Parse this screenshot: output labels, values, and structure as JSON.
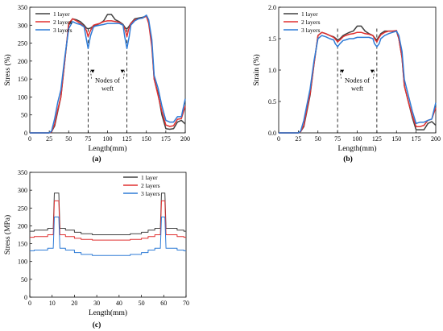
{
  "chart_data": [
    {
      "type": "line",
      "panel_label": "(a)",
      "xlabel": "Length(mm)",
      "ylabel": "Stress (%)",
      "xlim": [
        0,
        200
      ],
      "ylim": [
        0,
        350
      ],
      "xticks": [
        0,
        25,
        50,
        75,
        100,
        125,
        150,
        175,
        200
      ],
      "yticks": [
        0,
        50,
        100,
        150,
        200,
        250,
        300,
        350
      ],
      "legend_position": "top-left",
      "annotation": {
        "text": "Nodes of\nweft",
        "at_x": [
          75,
          125
        ]
      },
      "series": [
        {
          "name": "1 layer",
          "color": "#404040",
          "x": [
            0,
            25,
            28,
            32,
            36,
            40,
            45,
            50,
            55,
            60,
            65,
            70,
            73,
            75,
            78,
            82,
            85,
            90,
            95,
            100,
            105,
            110,
            115,
            120,
            123,
            125,
            127,
            130,
            135,
            140,
            145,
            150,
            153,
            157,
            160,
            165,
            170,
            175,
            180,
            185,
            190,
            195,
            200
          ],
          "y": [
            0,
            0,
            3,
            20,
            60,
            100,
            200,
            300,
            318,
            315,
            310,
            300,
            292,
            290,
            292,
            298,
            300,
            305,
            312,
            330,
            330,
            315,
            310,
            302,
            292,
            290,
            295,
            305,
            318,
            320,
            322,
            325,
            310,
            250,
            150,
            110,
            50,
            12,
            10,
            12,
            30,
            35,
            25
          ]
        },
        {
          "name": "2 layers",
          "color": "#e03030",
          "x": [
            0,
            25,
            28,
            32,
            36,
            40,
            45,
            50,
            55,
            60,
            65,
            70,
            73,
            75,
            78,
            82,
            85,
            90,
            95,
            100,
            105,
            110,
            115,
            120,
            123,
            125,
            127,
            130,
            135,
            140,
            145,
            150,
            153,
            157,
            160,
            165,
            170,
            175,
            180,
            185,
            190,
            195,
            200
          ],
          "y": [
            0,
            0,
            3,
            25,
            65,
            100,
            200,
            305,
            318,
            312,
            305,
            296,
            285,
            268,
            285,
            300,
            302,
            305,
            310,
            312,
            312,
            310,
            308,
            300,
            285,
            268,
            288,
            305,
            315,
            318,
            320,
            325,
            305,
            240,
            150,
            105,
            60,
            22,
            18,
            20,
            38,
            40,
            75
          ]
        },
        {
          "name": "3 layers",
          "color": "#2e7bd6",
          "x": [
            0,
            25,
            28,
            32,
            36,
            40,
            45,
            50,
            55,
            60,
            65,
            70,
            72,
            75,
            78,
            82,
            85,
            90,
            95,
            100,
            105,
            110,
            115,
            120,
            122,
            125,
            128,
            130,
            135,
            140,
            145,
            150,
            153,
            157,
            160,
            165,
            170,
            175,
            180,
            185,
            190,
            195,
            200
          ],
          "y": [
            0,
            0,
            5,
            40,
            85,
            120,
            210,
            290,
            310,
            305,
            302,
            295,
            270,
            235,
            270,
            295,
            298,
            300,
            302,
            305,
            305,
            305,
            305,
            300,
            270,
            235,
            270,
            300,
            312,
            318,
            320,
            328,
            315,
            260,
            160,
            125,
            75,
            35,
            30,
            30,
            45,
            45,
            95
          ]
        }
      ]
    },
    {
      "type": "line",
      "panel_label": "(b)",
      "xlabel": "Length(mm)",
      "ylabel": "Strain (%)",
      "xlim": [
        0,
        200
      ],
      "ylim": [
        0,
        2.0
      ],
      "xticks": [
        0,
        25,
        50,
        75,
        100,
        125,
        150,
        175,
        200
      ],
      "yticks": [
        0.0,
        0.5,
        1.0,
        1.5,
        2.0
      ],
      "ytick_labels": [
        "0.0",
        "0.5",
        "1.0",
        "1.5",
        "2.0"
      ],
      "legend_position": "top-left",
      "annotation": {
        "text": "Nodes of\nweft",
        "at_x": [
          75,
          125
        ]
      },
      "series": [
        {
          "name": "1 layer",
          "color": "#404040",
          "x": [
            0,
            25,
            28,
            32,
            36,
            40,
            45,
            50,
            55,
            60,
            65,
            70,
            73,
            75,
            78,
            82,
            85,
            90,
            95,
            100,
            105,
            110,
            115,
            120,
            123,
            125,
            127,
            130,
            135,
            140,
            145,
            150,
            153,
            157,
            160,
            165,
            170,
            175,
            180,
            185,
            190,
            195,
            200
          ],
          "y": [
            0,
            0,
            0.02,
            0.1,
            0.35,
            0.6,
            1.1,
            1.55,
            1.6,
            1.58,
            1.55,
            1.53,
            1.5,
            1.48,
            1.5,
            1.55,
            1.57,
            1.6,
            1.62,
            1.7,
            1.7,
            1.62,
            1.58,
            1.55,
            1.5,
            1.48,
            1.52,
            1.58,
            1.62,
            1.62,
            1.62,
            1.62,
            1.5,
            1.2,
            0.75,
            0.5,
            0.25,
            0.05,
            0.05,
            0.05,
            0.15,
            0.18,
            0.12
          ]
        },
        {
          "name": "2 layers",
          "color": "#e03030",
          "x": [
            0,
            25,
            28,
            32,
            36,
            40,
            45,
            50,
            55,
            60,
            65,
            70,
            73,
            75,
            78,
            82,
            85,
            90,
            95,
            100,
            105,
            110,
            115,
            120,
            123,
            125,
            127,
            130,
            135,
            140,
            145,
            150,
            153,
            157,
            160,
            165,
            170,
            175,
            180,
            185,
            190,
            195,
            200
          ],
          "y": [
            0,
            0,
            0.02,
            0.12,
            0.38,
            0.62,
            1.1,
            1.55,
            1.6,
            1.58,
            1.55,
            1.52,
            1.48,
            1.45,
            1.48,
            1.53,
            1.55,
            1.57,
            1.58,
            1.6,
            1.6,
            1.58,
            1.57,
            1.55,
            1.48,
            1.45,
            1.5,
            1.56,
            1.6,
            1.62,
            1.62,
            1.63,
            1.5,
            1.2,
            0.75,
            0.5,
            0.28,
            0.1,
            0.1,
            0.12,
            0.2,
            0.22,
            0.4
          ]
        },
        {
          "name": "3 layers",
          "color": "#2e7bd6",
          "x": [
            0,
            25,
            28,
            32,
            36,
            40,
            45,
            50,
            55,
            60,
            65,
            70,
            72,
            75,
            78,
            82,
            85,
            90,
            95,
            100,
            105,
            110,
            115,
            120,
            122,
            125,
            128,
            130,
            135,
            140,
            145,
            150,
            153,
            157,
            160,
            165,
            170,
            175,
            180,
            185,
            190,
            195,
            200
          ],
          "y": [
            0,
            0,
            0.03,
            0.2,
            0.45,
            0.7,
            1.15,
            1.5,
            1.55,
            1.53,
            1.5,
            1.48,
            1.42,
            1.37,
            1.42,
            1.47,
            1.48,
            1.5,
            1.5,
            1.52,
            1.52,
            1.52,
            1.52,
            1.5,
            1.42,
            1.37,
            1.42,
            1.5,
            1.55,
            1.58,
            1.6,
            1.62,
            1.55,
            1.3,
            0.85,
            0.6,
            0.35,
            0.15,
            0.17,
            0.17,
            0.2,
            0.22,
            0.48
          ]
        }
      ]
    },
    {
      "type": "line",
      "panel_label": "(c)",
      "xlabel": "Length(mm)",
      "ylabel": "Stress (MPa)",
      "xlim": [
        0,
        70
      ],
      "ylim": [
        0,
        350
      ],
      "xticks": [
        0,
        10,
        20,
        30,
        40,
        50,
        60,
        70
      ],
      "yticks": [
        0,
        50,
        100,
        150,
        200,
        250,
        300,
        350
      ],
      "legend_position": "top-right",
      "series": [
        {
          "name": "1 layer",
          "color": "#404040",
          "x": [
            0,
            2,
            2,
            8,
            8,
            10.5,
            11,
            13,
            13.5,
            14,
            16,
            16,
            20,
            20,
            23,
            23,
            28,
            28,
            45,
            45,
            50,
            50,
            53,
            53,
            56,
            56,
            58.5,
            59,
            60.5,
            61,
            63,
            63.5,
            64,
            66,
            66,
            69,
            69,
            70
          ],
          "y": [
            185,
            185,
            188,
            188,
            193,
            193,
            292,
            292,
            193,
            193,
            193,
            188,
            188,
            182,
            182,
            178,
            178,
            175,
            175,
            178,
            178,
            182,
            182,
            188,
            188,
            193,
            193,
            292,
            292,
            193,
            193,
            193,
            193,
            193,
            188,
            188,
            185,
            185
          ]
        },
        {
          "name": "2 layers",
          "color": "#e03030",
          "x": [
            0,
            2,
            2,
            8,
            8,
            10.5,
            11,
            13,
            13.5,
            14,
            16,
            16,
            20,
            20,
            23,
            23,
            28,
            28,
            45,
            45,
            50,
            50,
            53,
            53,
            56,
            56,
            58.5,
            59,
            60.5,
            61,
            63,
            63.5,
            64,
            66,
            66,
            69,
            69,
            70
          ],
          "y": [
            168,
            168,
            170,
            170,
            175,
            175,
            270,
            270,
            175,
            175,
            175,
            170,
            170,
            165,
            165,
            162,
            162,
            160,
            160,
            162,
            162,
            165,
            165,
            170,
            170,
            175,
            175,
            270,
            270,
            175,
            175,
            175,
            175,
            175,
            170,
            170,
            168,
            168
          ]
        },
        {
          "name": "3 layers",
          "color": "#2e7bd6",
          "x": [
            0,
            2,
            2,
            8,
            8,
            10.5,
            11,
            13,
            13.5,
            14,
            16,
            16,
            20,
            20,
            23,
            23,
            28,
            28,
            45,
            45,
            50,
            50,
            53,
            53,
            56,
            56,
            58.5,
            59,
            60.5,
            61,
            63,
            63.5,
            64,
            66,
            66,
            69,
            69,
            70
          ],
          "y": [
            130,
            130,
            132,
            132,
            137,
            137,
            225,
            225,
            137,
            137,
            137,
            132,
            132,
            125,
            125,
            120,
            120,
            117,
            117,
            120,
            120,
            125,
            125,
            132,
            132,
            137,
            137,
            225,
            225,
            137,
            137,
            137,
            137,
            137,
            132,
            132,
            130,
            130
          ]
        }
      ]
    }
  ]
}
